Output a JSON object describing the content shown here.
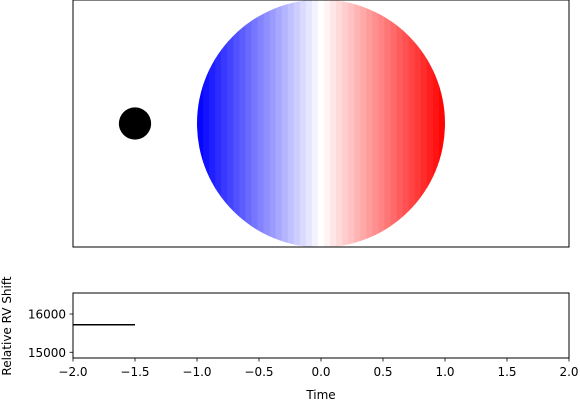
{
  "chart_data": [
    {
      "type": "scatter",
      "panel": "rossiter-mclaughlin-visualization",
      "description_visible": "star disk with rotational blue-to-red velocity shading and dark transiting planet",
      "star": {
        "center_x": 0.0,
        "center_y": 0.0,
        "radius": 1.0,
        "approaching_color": "#0000ff",
        "receding_color": "#ff0000",
        "center_color": "#ffffff",
        "strip_count": 41
      },
      "planet": {
        "x": -1.5,
        "y": 0.0,
        "radius": 0.13,
        "color": "#000000"
      },
      "xlim": [
        -2.0,
        2.0
      ],
      "ylim": [
        -1.0,
        1.0
      ],
      "axes_visible": false,
      "frame_visible": true
    },
    {
      "type": "line",
      "panel": "rv-curve",
      "title": "",
      "xlabel": "Time",
      "ylabel": "Relative RV Shift",
      "xlim": [
        -2.0,
        2.0
      ],
      "ylim": [
        14850,
        16550
      ],
      "xticks": [
        -2.0,
        -1.5,
        -1.0,
        -0.5,
        0.0,
        0.5,
        1.0,
        1.5,
        2.0
      ],
      "xtick_labels": [
        "−2.0",
        "−1.5",
        "−1.0",
        "−0.5",
        "0.0",
        "0.5",
        "1.0",
        "1.5",
        "2.0"
      ],
      "yticks": [
        15000,
        16000
      ],
      "ytick_labels": [
        "15000",
        "16000"
      ],
      "series": [
        {
          "x": [
            -2.0,
            -1.5
          ],
          "y": [
            15720,
            15720
          ],
          "color": "#000000"
        }
      ]
    }
  ]
}
